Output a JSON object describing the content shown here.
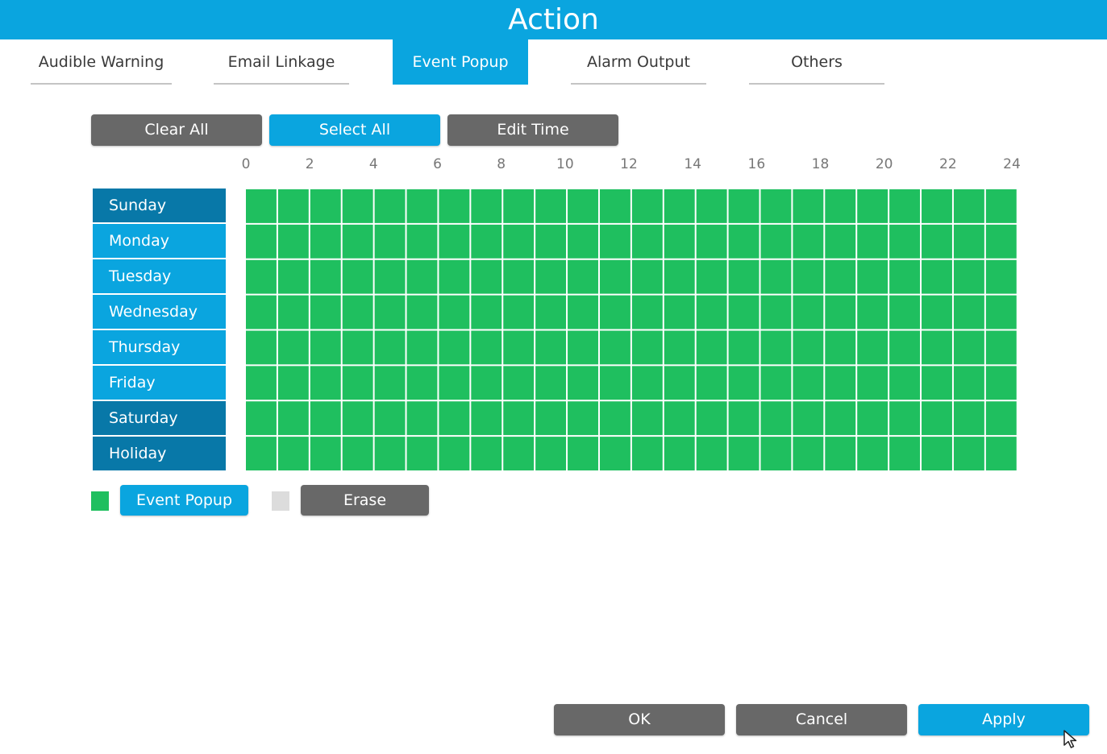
{
  "window": {
    "title": "Action"
  },
  "tabs": [
    {
      "label": "Audible Warning",
      "active": false
    },
    {
      "label": "Email Linkage",
      "active": false
    },
    {
      "label": "Event Popup",
      "active": true
    },
    {
      "label": "Alarm Output",
      "active": false
    },
    {
      "label": "Others",
      "active": false
    }
  ],
  "toolbar": {
    "clear_all": "Clear All",
    "select_all": "Select All",
    "edit_time": "Edit Time"
  },
  "schedule": {
    "hour_labels": [
      "0",
      "2",
      "4",
      "6",
      "8",
      "10",
      "12",
      "14",
      "16",
      "18",
      "20",
      "22",
      "24"
    ],
    "days": [
      {
        "label": "Sunday",
        "shade": "dark"
      },
      {
        "label": "Monday",
        "shade": "light"
      },
      {
        "label": "Tuesday",
        "shade": "light"
      },
      {
        "label": "Wednesday",
        "shade": "light"
      },
      {
        "label": "Thursday",
        "shade": "light"
      },
      {
        "label": "Friday",
        "shade": "light"
      },
      {
        "label": "Saturday",
        "shade": "dark"
      },
      {
        "label": "Holiday",
        "shade": "dark"
      }
    ],
    "slots_per_day": 24,
    "all_slots_selected": true,
    "selected_color": "#1fbf5f"
  },
  "legend": {
    "event_popup_label": "Event Popup",
    "event_popup_color": "#1fbf5f",
    "erase_label": "Erase",
    "erase_color": "#dcdcdc"
  },
  "footer": {
    "ok": "OK",
    "cancel": "Cancel",
    "apply": "Apply"
  },
  "colors": {
    "accent": "#0aa5df",
    "day_dark": "#0878a8",
    "button_gray": "#686868"
  }
}
